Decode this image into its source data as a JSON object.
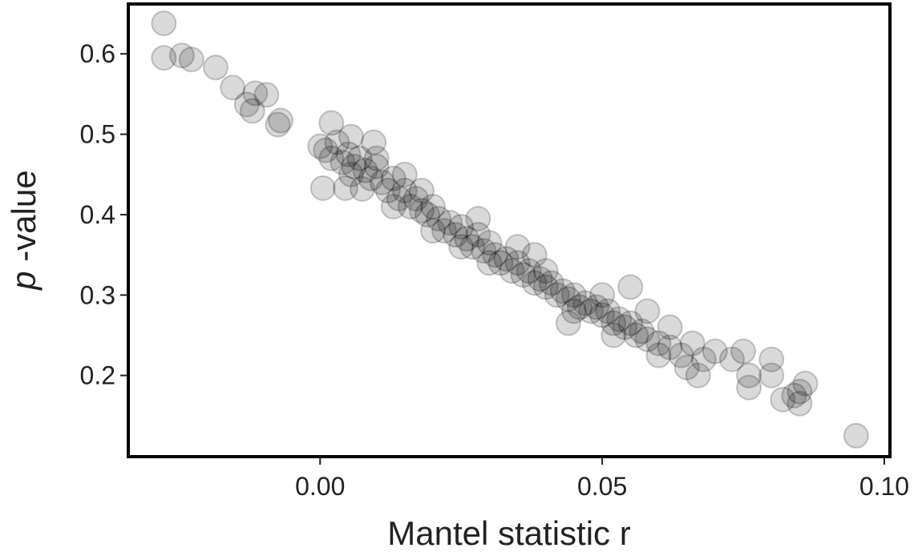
{
  "chart_data": {
    "type": "scatter",
    "xlabel": "Mantel statistic r",
    "ylabel": [
      "p",
      " -value"
    ],
    "color": "#000000",
    "x": [
      -0.0277,
      -0.0277,
      -0.0245,
      -0.0228,
      -0.0185,
      -0.0155,
      -0.013,
      -0.0115,
      -0.0095,
      -0.012,
      -0.007,
      -0.0075,
      0.002,
      0.0,
      0.0055,
      0.0095,
      0.0055,
      0.0005,
      0.0045,
      0.0075,
      0.001,
      0.002,
      0.003,
      0.004,
      0.005,
      0.006,
      0.007,
      0.008,
      0.009,
      0.01,
      0.011,
      0.012,
      0.013,
      0.014,
      0.015,
      0.016,
      0.017,
      0.018,
      0.019,
      0.02,
      0.021,
      0.022,
      0.023,
      0.024,
      0.025,
      0.026,
      0.027,
      0.028,
      0.029,
      0.03,
      0.031,
      0.032,
      0.033,
      0.034,
      0.035,
      0.036,
      0.037,
      0.038,
      0.039,
      0.04,
      0.041,
      0.042,
      0.043,
      0.044,
      0.045,
      0.046,
      0.047,
      0.048,
      0.049,
      0.05,
      0.051,
      0.052,
      0.053,
      0.054,
      0.055,
      0.056,
      0.057,
      0.058,
      0.06,
      0.062,
      0.064,
      0.013,
      0.018,
      0.025,
      0.03,
      0.035,
      0.04,
      0.045,
      0.05,
      0.02,
      0.01,
      0.015,
      0.028,
      0.038,
      0.044,
      0.052,
      0.06,
      0.065,
      0.067,
      0.055,
      0.058,
      0.062,
      0.066,
      0.068,
      0.07,
      0.073,
      0.075,
      0.076,
      0.08,
      0.08,
      0.082,
      0.084,
      0.085,
      0.086,
      0.085,
      0.076,
      0.095
    ],
    "values": [
      0.638,
      0.595,
      0.598,
      0.593,
      0.583,
      0.558,
      0.537,
      0.551,
      0.549,
      0.529,
      0.517,
      0.512,
      0.514,
      0.485,
      0.497,
      0.49,
      0.45,
      0.433,
      0.433,
      0.432,
      0.48,
      0.47,
      0.49,
      0.465,
      0.475,
      0.46,
      0.47,
      0.455,
      0.445,
      0.46,
      0.44,
      0.43,
      0.445,
      0.42,
      0.43,
      0.41,
      0.42,
      0.405,
      0.4,
      0.41,
      0.395,
      0.38,
      0.39,
      0.375,
      0.385,
      0.37,
      0.36,
      0.375,
      0.355,
      0.365,
      0.35,
      0.34,
      0.345,
      0.33,
      0.34,
      0.325,
      0.33,
      0.315,
      0.32,
      0.31,
      0.315,
      0.3,
      0.305,
      0.295,
      0.3,
      0.285,
      0.29,
      0.28,
      0.285,
      0.275,
      0.28,
      0.265,
      0.27,
      0.26,
      0.265,
      0.25,
      0.255,
      0.245,
      0.24,
      0.235,
      0.225,
      0.41,
      0.43,
      0.36,
      0.34,
      0.36,
      0.33,
      0.28,
      0.3,
      0.38,
      0.47,
      0.45,
      0.395,
      0.35,
      0.265,
      0.25,
      0.225,
      0.21,
      0.2,
      0.31,
      0.28,
      0.26,
      0.24,
      0.22,
      0.23,
      0.22,
      0.23,
      0.185,
      0.22,
      0.2,
      0.17,
      0.175,
      0.165,
      0.19,
      0.18,
      0.2,
      0.125
    ],
    "xlim": [
      -0.034,
      0.101
    ],
    "ylim": [
      0.099,
      0.662
    ],
    "xticks": [
      {
        "value": 0,
        "label": "0.00"
      },
      {
        "value": 0.05,
        "label": "0.05"
      },
      {
        "value": 0.1,
        "label": "0.10"
      }
    ],
    "yticks": [
      0.2,
      0.3,
      0.4,
      0.5,
      0.6
    ]
  }
}
